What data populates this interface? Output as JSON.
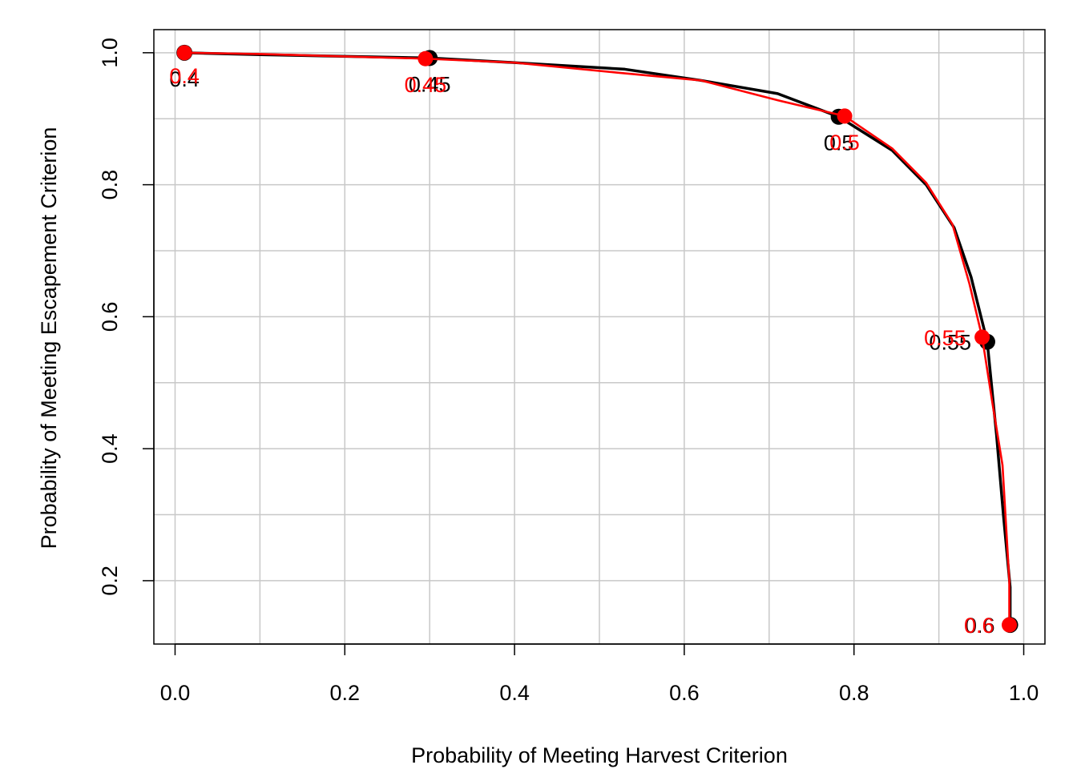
{
  "chart_data": {
    "type": "line",
    "xlabel": "Probability of Meeting Harvest Criterion",
    "ylabel": "Probability of Meeting Escapement Criterion",
    "xlim": [
      -0.025,
      1.025
    ],
    "ylim": [
      0.104,
      1.035
    ],
    "xticks": [
      0.0,
      0.2,
      0.4,
      0.6,
      0.8,
      1.0
    ],
    "xtick_labels": [
      "0.0",
      "0.2",
      "0.4",
      "0.6",
      "0.8",
      "1.0"
    ],
    "yticks": [
      0.2,
      0.4,
      0.6,
      0.8,
      1.0
    ],
    "ytick_labels": [
      "0.2",
      "0.4",
      "0.6",
      "0.8",
      "1.0"
    ],
    "grid": true,
    "grid_x": [
      0,
      0.1,
      0.2,
      0.3,
      0.4,
      0.5,
      0.6,
      0.7,
      0.8,
      0.9,
      1.0
    ],
    "grid_y": [
      0.2,
      0.3,
      0.4,
      0.5,
      0.6,
      0.7,
      0.8,
      0.9,
      1.0
    ],
    "series": [
      {
        "color": "#000000",
        "line": [
          {
            "x": 0.011,
            "y": 1.0
          },
          {
            "x": 0.1,
            "y": 0.997
          },
          {
            "x": 0.3,
            "y": 0.992
          },
          {
            "x": 0.4,
            "y": 0.985
          },
          {
            "x": 0.53,
            "y": 0.975
          },
          {
            "x": 0.62,
            "y": 0.958
          },
          {
            "x": 0.71,
            "y": 0.938
          },
          {
            "x": 0.782,
            "y": 0.903
          },
          {
            "x": 0.845,
            "y": 0.852
          },
          {
            "x": 0.885,
            "y": 0.8
          },
          {
            "x": 0.918,
            "y": 0.735
          },
          {
            "x": 0.938,
            "y": 0.66
          },
          {
            "x": 0.957,
            "y": 0.562
          },
          {
            "x": 0.968,
            "y": 0.42
          },
          {
            "x": 0.976,
            "y": 0.3
          },
          {
            "x": 0.984,
            "y": 0.19
          },
          {
            "x": 0.984,
            "y": 0.133
          }
        ],
        "points": [
          {
            "x": 0.011,
            "y": 1.0,
            "label": "0.4"
          },
          {
            "x": 0.3,
            "y": 0.992,
            "label": "0.45"
          },
          {
            "x": 0.782,
            "y": 0.903,
            "label": "0.5"
          },
          {
            "x": 0.957,
            "y": 0.562,
            "label": "0.55"
          },
          {
            "x": 0.984,
            "y": 0.133,
            "label": "0.6"
          }
        ]
      },
      {
        "color": "#ff0000",
        "line": [
          {
            "x": 0.011,
            "y": 1.0
          },
          {
            "x": 0.1,
            "y": 0.998
          },
          {
            "x": 0.295,
            "y": 0.991
          },
          {
            "x": 0.4,
            "y": 0.985
          },
          {
            "x": 0.52,
            "y": 0.97
          },
          {
            "x": 0.62,
            "y": 0.958
          },
          {
            "x": 0.71,
            "y": 0.928
          },
          {
            "x": 0.789,
            "y": 0.904
          },
          {
            "x": 0.845,
            "y": 0.855
          },
          {
            "x": 0.885,
            "y": 0.803
          },
          {
            "x": 0.916,
            "y": 0.74
          },
          {
            "x": 0.936,
            "y": 0.65
          },
          {
            "x": 0.951,
            "y": 0.569
          },
          {
            "x": 0.963,
            "y": 0.47
          },
          {
            "x": 0.975,
            "y": 0.375
          },
          {
            "x": 0.983,
            "y": 0.2
          },
          {
            "x": 0.983,
            "y": 0.133
          }
        ],
        "points": [
          {
            "x": 0.011,
            "y": 1.0,
            "label": "0.4"
          },
          {
            "x": 0.295,
            "y": 0.991,
            "label": "0.45"
          },
          {
            "x": 0.789,
            "y": 0.904,
            "label": "0.5"
          },
          {
            "x": 0.951,
            "y": 0.569,
            "label": "0.55"
          },
          {
            "x": 0.983,
            "y": 0.133,
            "label": "0.6"
          }
        ]
      }
    ]
  }
}
